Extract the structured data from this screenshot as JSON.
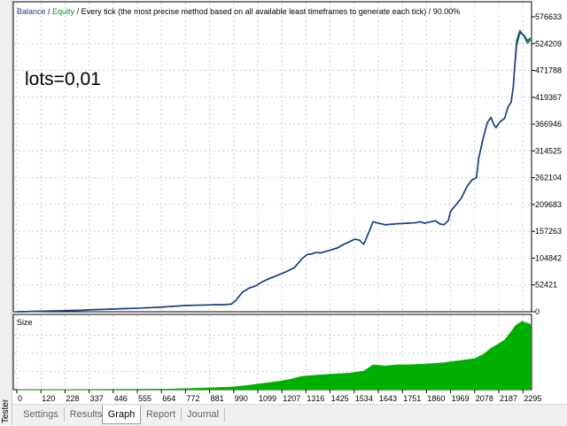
{
  "window": {
    "side_label": "Tester",
    "tabs": [
      {
        "label": "Settings",
        "active": false
      },
      {
        "label": "Results",
        "active": false
      },
      {
        "label": "Graph",
        "active": true
      },
      {
        "label": "Report",
        "active": false
      },
      {
        "label": "Journal",
        "active": false
      }
    ]
  },
  "header": {
    "balance_label": "Balance",
    "sep1": " / ",
    "equity_label": "Equity",
    "description": " / Every tick (the most precise method based on all available least timeframes to generate each tick) / 90.00%"
  },
  "annotation": "lots=0,01",
  "size_label": "Size",
  "colors": {
    "balance": "#1d3f8f",
    "equity": "#1a8a1a",
    "size_fill": "#00b000",
    "grid": "#c8d0dc"
  },
  "chart_data": [
    {
      "type": "line",
      "series": [
        {
          "name": "Balance",
          "x": [
            0,
            60,
            120,
            180,
            228,
            300,
            337,
            400,
            446,
            500,
            555,
            600,
            664,
            700,
            740,
            772,
            800,
            850,
            900,
            960,
            990,
            1010,
            1040,
            1070,
            1099,
            1130,
            1160,
            1207,
            1240,
            1280,
            1316,
            1340,
            1360,
            1380,
            1400,
            1425,
            1450,
            1480,
            1500,
            1534,
            1560,
            1580,
            1600,
            1620,
            1643,
            1660,
            1700,
            1751,
            1800,
            1840,
            1860,
            1880,
            1900,
            1930,
            1950,
            1969,
            1990,
            2000,
            2020,
            2050,
            2078,
            2100,
            2120,
            2130,
            2150,
            2170,
            2187,
            2200,
            2210,
            2230,
            2250,
            2265,
            2280,
            2290,
            2295,
            2305,
            2320,
            2340,
            2355,
            2370
          ],
          "values": [
            0,
            600,
            1200,
            1600,
            2200,
            3000,
            3800,
            4600,
            5300,
            6200,
            7000,
            7800,
            9000,
            10000,
            11000,
            12000,
            12500,
            13000,
            13500,
            14000,
            15000,
            22000,
            38000,
            46000,
            50000,
            58000,
            64000,
            72000,
            78000,
            86000,
            104000,
            112000,
            113000,
            116000,
            115000,
            118000,
            121000,
            125000,
            130000,
            137000,
            142000,
            140000,
            132000,
            152000,
            176000,
            174000,
            170000,
            172000,
            173000,
            174000,
            176000,
            173000,
            175000,
            178000,
            172000,
            170000,
            178000,
            196000,
            206000,
            222000,
            246000,
            258000,
            262000,
            300000,
            338000,
            370000,
            380000,
            366000,
            360000,
            372000,
            378000,
            400000,
            410000,
            440000,
            470000,
            520000,
            546000,
            540000,
            530000,
            535000
          ]
        },
        {
          "name": "Equity",
          "x": [
            0,
            60,
            120,
            180,
            228,
            300,
            337,
            400,
            446,
            500,
            555,
            600,
            664,
            700,
            740,
            772,
            800,
            850,
            900,
            960,
            990,
            1010,
            1040,
            1070,
            1099,
            1130,
            1160,
            1207,
            1240,
            1280,
            1316,
            1340,
            1360,
            1380,
            1400,
            1425,
            1450,
            1480,
            1500,
            1534,
            1560,
            1580,
            1600,
            1620,
            1643,
            1660,
            1700,
            1751,
            1800,
            1840,
            1860,
            1880,
            1900,
            1930,
            1950,
            1969,
            1990,
            2000,
            2020,
            2050,
            2078,
            2100,
            2120,
            2130,
            2150,
            2170,
            2187,
            2200,
            2210,
            2230,
            2250,
            2265,
            2280,
            2290,
            2295,
            2305,
            2320,
            2340,
            2355,
            2370
          ],
          "values": [
            0,
            600,
            1200,
            1600,
            2200,
            3000,
            3800,
            4600,
            5300,
            6200,
            7000,
            7800,
            9000,
            10000,
            11000,
            12000,
            12500,
            13000,
            13500,
            14000,
            15000,
            22000,
            38000,
            46000,
            50000,
            58000,
            64000,
            72000,
            78000,
            86000,
            104000,
            112000,
            113000,
            116000,
            115000,
            118000,
            121000,
            125000,
            130000,
            137000,
            142000,
            140000,
            132000,
            152000,
            176000,
            174000,
            170000,
            172000,
            173000,
            174000,
            176000,
            173000,
            175000,
            178000,
            172000,
            170000,
            178000,
            196000,
            206000,
            222000,
            246000,
            258000,
            262000,
            300000,
            338000,
            370000,
            380000,
            366000,
            360000,
            372000,
            378000,
            400000,
            410000,
            440000,
            470000,
            530000,
            550000,
            538000,
            525000,
            532000
          ]
        }
      ],
      "xlim": [
        0,
        2370
      ],
      "ylim": [
        0,
        576633
      ],
      "y_ticks": [
        "576633",
        "524209",
        "471788",
        "419367",
        "366946",
        "314525",
        "262104",
        "209683",
        "157263",
        "104842",
        "52421",
        "0"
      ],
      "grid": true
    },
    {
      "type": "area",
      "series": [
        {
          "name": "Size",
          "x": [
            0,
            700,
            800,
            900,
            990,
            1060,
            1130,
            1207,
            1260,
            1316,
            1380,
            1450,
            1534,
            1600,
            1643,
            1700,
            1751,
            1800,
            1860,
            1920,
            1969,
            2000,
            2040,
            2078,
            2110,
            2150,
            2187,
            2220,
            2250,
            2280,
            2300,
            2330,
            2370
          ],
          "values": [
            0,
            0.3,
            0.6,
            1,
            1.3,
            2,
            3,
            4,
            5,
            6.5,
            7,
            7.5,
            8,
            9,
            12,
            11.5,
            12,
            12,
            12.3,
            12.6,
            13,
            13.5,
            14,
            14.5,
            15,
            17,
            20,
            22,
            24,
            28,
            31,
            33,
            31.5
          ]
        }
      ],
      "xlim": [
        0,
        2370
      ],
      "ylim": [
        0,
        35
      ],
      "x_ticks": [
        "0",
        "120",
        "228",
        "337",
        "446",
        "555",
        "664",
        "772",
        "881",
        "990",
        "1099",
        "1207",
        "1316",
        "1425",
        "1534",
        "1643",
        "1751",
        "1860",
        "1969",
        "2078",
        "2187",
        "2295"
      ],
      "grid": true
    }
  ]
}
